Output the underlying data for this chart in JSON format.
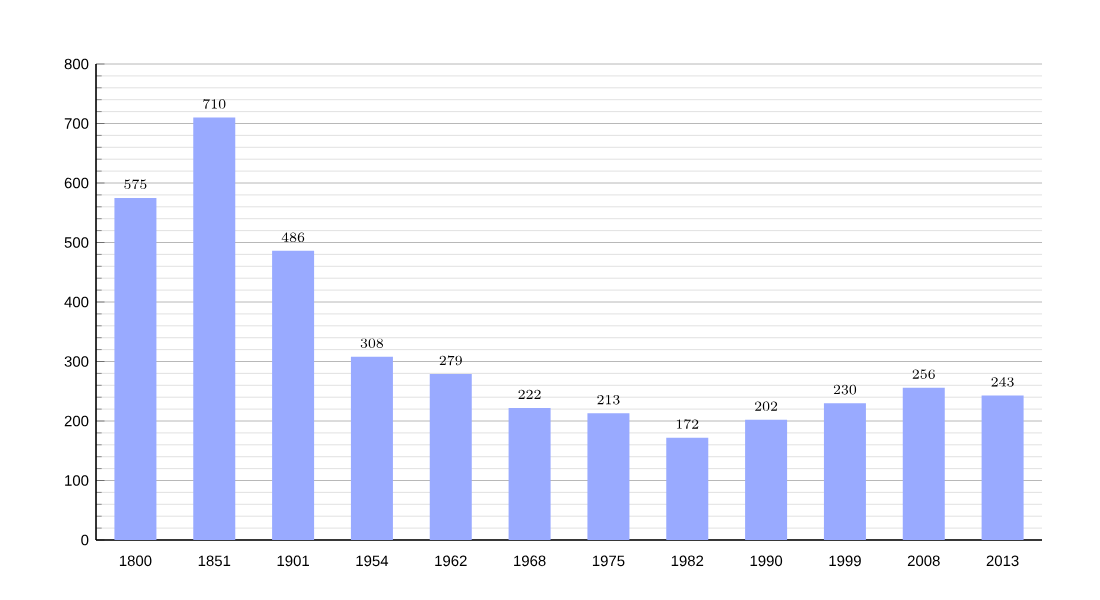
{
  "chart_data": {
    "type": "bar",
    "categories": [
      "1800",
      "1851",
      "1901",
      "1954",
      "1962",
      "1968",
      "1975",
      "1982",
      "1990",
      "1999",
      "2008",
      "2013"
    ],
    "values": [
      575,
      710,
      486,
      308,
      279,
      222,
      213,
      172,
      202,
      230,
      256,
      243
    ],
    "color": "#99aaff",
    "ylim": [
      0,
      800
    ],
    "yticks": [
      0,
      100,
      200,
      300,
      400,
      500,
      600,
      700,
      800
    ],
    "grid": "y",
    "data_labels": true
  }
}
